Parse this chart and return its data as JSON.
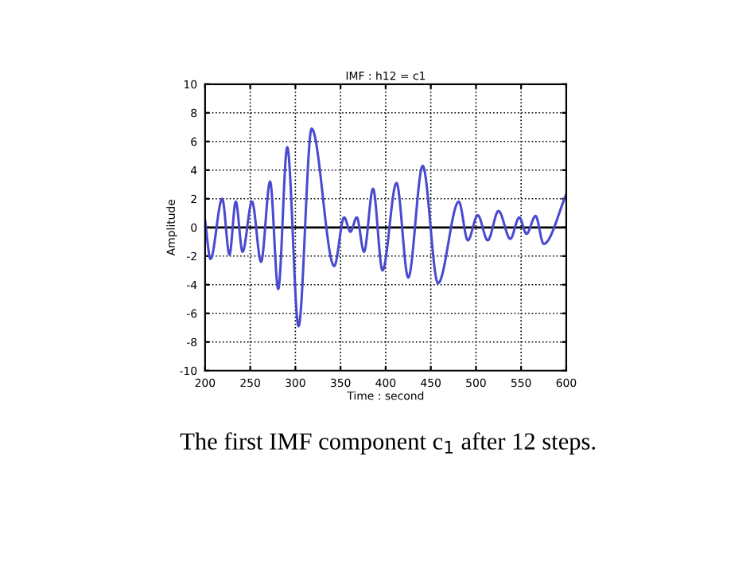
{
  "chart_data": {
    "type": "line",
    "title": "IMF : h12 = c1",
    "xlabel": "Time : second",
    "ylabel": "Amplitude",
    "annotations": [
      "The first IMF component c$_{1}$ after 12 steps."
    ],
    "series": [
      {
        "color": "#4a4ad0",
        "x": [
          200,
          206,
          219,
          227,
          234,
          241.5,
          252,
          262,
          272,
          281,
          291,
          303.5,
          318,
          343,
          354,
          361,
          368,
          376,
          386,
          396.5,
          412,
          425,
          441,
          458,
          481,
          491,
          502,
          513,
          525,
          538,
          548,
          556,
          566,
          575,
          600
        ],
        "values": [
          0.5,
          -2.2,
          2.0,
          -1.9,
          1.8,
          -1.7,
          1.8,
          -2.4,
          3.2,
          -4.3,
          5.6,
          -6.9,
          6.9,
          -2.7,
          0.7,
          -0.3,
          0.7,
          -1.7,
          2.7,
          -3.0,
          3.1,
          -3.5,
          4.3,
          -3.9,
          1.8,
          -0.9,
          0.85,
          -0.9,
          1.15,
          -0.8,
          0.7,
          -0.45,
          0.8,
          -1.15,
          2.3
        ]
      }
    ],
    "xlim": [
      200,
      600
    ],
    "ylim": [
      -10,
      10
    ],
    "xticks": [
      200,
      250,
      300,
      350,
      400,
      450,
      500,
      550,
      600
    ],
    "yticks": [
      -10,
      -8,
      -6,
      -4,
      -2,
      0,
      2,
      4,
      6,
      8,
      10
    ],
    "grid": true,
    "legend": false,
    "ref_lines": [
      {
        "axis": "y",
        "value": 0,
        "color": "#000000",
        "line_style": "solid"
      }
    ]
  }
}
